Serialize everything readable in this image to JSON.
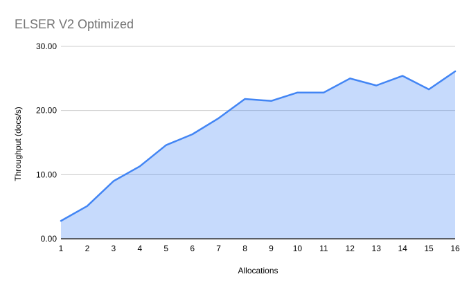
{
  "chart_data": {
    "type": "area",
    "title": "ELSER V2 Optimized",
    "xlabel": "Allocations",
    "ylabel": "Throughput (docs/s)",
    "categories": [
      "1",
      "2",
      "3",
      "4",
      "5",
      "6",
      "7",
      "8",
      "9",
      "10",
      "11",
      "12",
      "13",
      "14",
      "15",
      "16"
    ],
    "series": [
      {
        "name": "Throughput (docs/s)",
        "values": [
          2.8,
          5.1,
          9.0,
          11.3,
          14.6,
          16.3,
          18.8,
          21.8,
          21.5,
          22.8,
          22.8,
          25.0,
          23.9,
          25.4,
          23.3,
          26.1
        ]
      }
    ],
    "ylim": [
      0,
      30
    ],
    "yticks": [
      {
        "value": 0,
        "label": "0.00"
      },
      {
        "value": 10,
        "label": "10.00"
      },
      {
        "value": 20,
        "label": "20.00"
      },
      {
        "value": 30,
        "label": "30.00"
      }
    ],
    "grid": true,
    "legend": "none",
    "colors": {
      "line": "#4285f4",
      "fill": "rgba(66,133,244,0.3)",
      "gridline": "#cccccc",
      "axis_line": "#333333",
      "title_text": "#757575",
      "tick_text": "#000000",
      "axis_title_text": "#000000"
    }
  }
}
